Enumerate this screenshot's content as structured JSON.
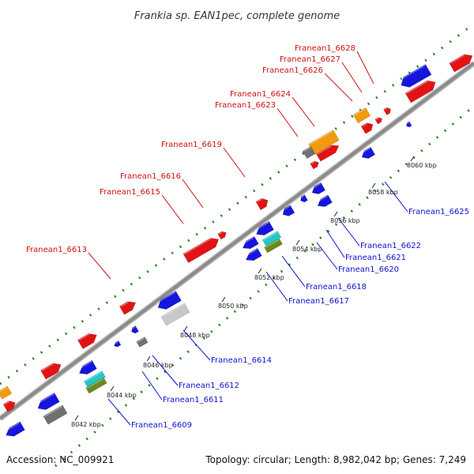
{
  "title": "Frankia sp. EAN1pec, complete genome",
  "footer": {
    "accession": "Accession: NC_009921",
    "summary": "Topology: circular; Length: 8,982,042 bp; Genes: 7,249"
  },
  "colors": {
    "forward_label": "#cc1111",
    "reverse_label": "#1111cc",
    "gc_dots": "#1e8a1e",
    "backbone": "#8a8a8a"
  },
  "ticks": [
    "8042 kbp",
    "8044 kbp",
    "8046 kbp",
    "8048 kbp",
    "8050 kbp",
    "8052 kbp",
    "8054 kbp",
    "8056 kbp",
    "8058 kbp",
    "8060 kbp"
  ],
  "forward_labels": [
    "Franean1_6613",
    "Franean1_6615",
    "Franean1_6616",
    "Franean1_6619",
    "Franean1_6623",
    "Franean1_6624",
    "Franean1_6626",
    "Franean1_6627",
    "Franean1_6628"
  ],
  "reverse_labels": [
    "Franean1_6609",
    "Franean1_6611",
    "Franean1_6612",
    "Franean1_6614",
    "Franean1_6617",
    "Franean1_6618",
    "Franean1_6620",
    "Franean1_6621",
    "Franean1_6622",
    "Franean1_6625"
  ]
}
